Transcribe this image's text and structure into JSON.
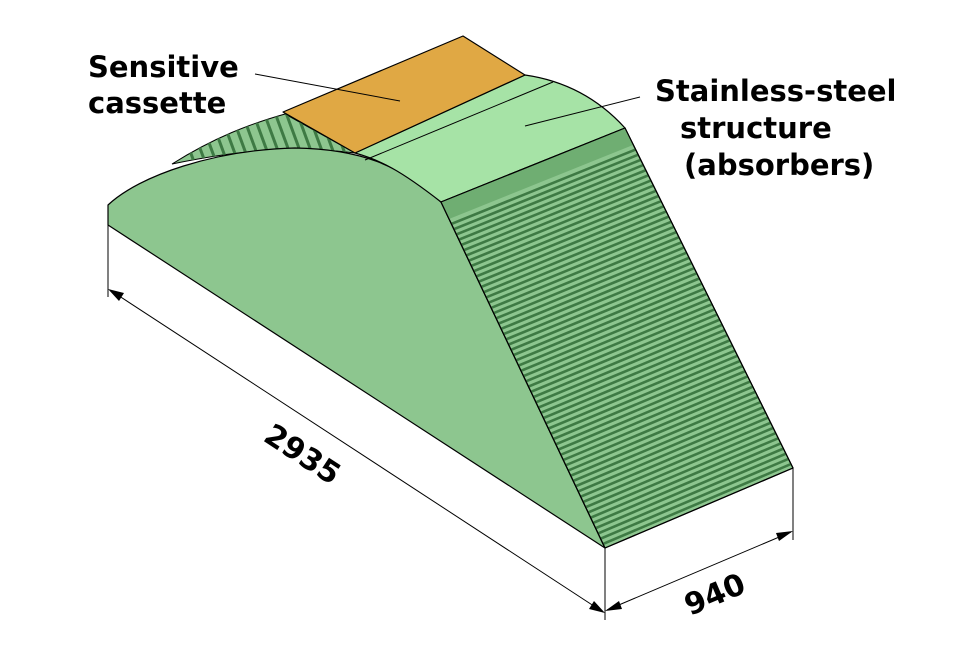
{
  "labels": {
    "cassette_line1": "Sensitive",
    "cassette_line2": "cassette",
    "steel_line1": "Stainless-steel",
    "steel_line2": "structure",
    "steel_line3": "(absorbers)"
  },
  "dimensions": {
    "length": "2935",
    "width": "940"
  },
  "colors": {
    "body_side": "#8dc68f",
    "top_panel": "#a6e3a6",
    "cassette": "#e0a844",
    "absorber_dark": "#3e7a44",
    "absorber_light": "#8dc68f",
    "outline": "#000000"
  }
}
